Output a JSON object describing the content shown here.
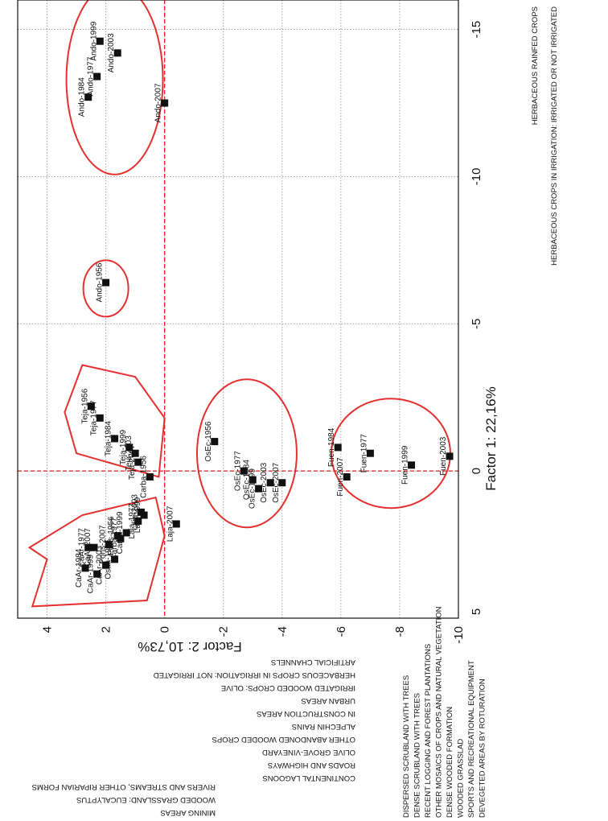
{
  "chart_data": {
    "type": "scatter",
    "xlabel": "Factor 1: 22,16%",
    "ylabel": "Factor 2: 10,73%",
    "xlim": [
      -16,
      5
    ],
    "ylim": [
      -10,
      5
    ],
    "xticks": [
      "-15",
      "-10",
      "-5",
      "0",
      "5"
    ],
    "yticks": [
      "4",
      "2",
      "0",
      "-2",
      "-4",
      "-6",
      "-8",
      "-10"
    ],
    "grid": true,
    "points": [
      {
        "label": "Ando-1999",
        "x": -14.6,
        "y": 2.2
      },
      {
        "label": "Ando-2003",
        "x": -14.2,
        "y": 1.6
      },
      {
        "label": "Ando-1977",
        "x": -13.4,
        "y": 2.3
      },
      {
        "label": "Ando-1984",
        "x": -12.7,
        "y": 2.6
      },
      {
        "label": "Ando-2007",
        "x": -12.5,
        "y": 0.0
      },
      {
        "label": "Ando-1956",
        "x": -6.4,
        "y": 2.0
      },
      {
        "label": "Teja-1956",
        "x": -2.2,
        "y": 2.5
      },
      {
        "label": "Teja-1977",
        "x": -1.8,
        "y": 2.2
      },
      {
        "label": "Teja-1984",
        "x": -1.1,
        "y": 1.7
      },
      {
        "label": "Teja-1999",
        "x": -0.8,
        "y": 1.2
      },
      {
        "label": "Teja-2003",
        "x": -0.6,
        "y": 1.0
      },
      {
        "label": "Teja-2007",
        "x": -0.3,
        "y": 0.9
      },
      {
        "label": "Carba-1956",
        "x": 0.2,
        "y": 0.5
      },
      {
        "label": "OsEc-1956",
        "x": -1.0,
        "y": -1.7
      },
      {
        "label": "OsEc-1977",
        "x": 0.0,
        "y": -2.7
      },
      {
        "label": "OsEc-1984",
        "x": 0.3,
        "y": -3.0
      },
      {
        "label": "OsEc-1999",
        "x": 0.6,
        "y": -3.2
      },
      {
        "label": "OsEc-2003",
        "x": 0.4,
        "y": -3.6
      },
      {
        "label": "OsEc-2007",
        "x": 0.4,
        "y": -4.0
      },
      {
        "label": "Fuen-1984",
        "x": -0.8,
        "y": -5.9
      },
      {
        "label": "Fuen-2007",
        "x": 0.2,
        "y": -6.2
      },
      {
        "label": "Fuen-1977",
        "x": -0.6,
        "y": -7.0
      },
      {
        "label": "Fuen-1999",
        "x": -0.2,
        "y": -8.4
      },
      {
        "label": "Fuen-2003",
        "x": -0.5,
        "y": -9.7
      },
      {
        "label": "CaAr-1977",
        "x": 2.6,
        "y": 2.6
      },
      {
        "label": "CaAr-1984",
        "x": 3.3,
        "y": 2.7
      },
      {
        "label": "CaAr-1999",
        "x": 3.5,
        "y": 2.3
      },
      {
        "label": "CaAr-2003",
        "x": 3.2,
        "y": 2.0
      },
      {
        "label": "CaAr-2007",
        "x": 2.6,
        "y": 2.4
      },
      {
        "label": "Osaa-1956",
        "x": 3.0,
        "y": 1.7
      },
      {
        "label": "Pons-1956",
        "x": 2.2,
        "y": 1.6
      },
      {
        "label": "Pons-2007",
        "x": 2.5,
        "y": 1.9
      },
      {
        "label": "Carba-1977",
        "x": 2.3,
        "y": 1.5
      },
      {
        "label": "Carba-1999",
        "x": 2.1,
        "y": 1.3
      },
      {
        "label": "Laja-1977",
        "x": 1.7,
        "y": 0.9
      },
      {
        "label": "Laja-1999",
        "x": 1.5,
        "y": 0.7
      },
      {
        "label": "Laja-2003",
        "x": 1.4,
        "y": 0.8
      },
      {
        "label": "Laja-2007",
        "x": 1.8,
        "y": -0.4
      }
    ],
    "annotations_right": [
      "HERBACEOUS RAINFED CROPS",
      "HERBACEOUS CROPS IN IRRIGATION: IRRIGATED OR NOT IRRIGATED"
    ],
    "annotations_left_inverted": [
      "ARTIFICIAL CHANNELS",
      "HERBACEOUS CROPS IN IRRIGATION: NOT IRRIGATED",
      "IRRIGATED WOODED CROPS: OLIVE",
      "URBAN AREAS",
      "IN CONSTRUCTION AREAS",
      "ALPECHIN RAINS",
      "OTHER ABANDONED WOODED CROPS",
      "OLIVE GROVE-VINEYARD",
      "ROADS AND HIGHWAYS",
      "CONTINENTAL LAGOONS"
    ],
    "annotations_left_inverted_2": [
      "RIVERS AND STREAMS, OTHER RIPARIAN FORMS",
      "WOODED GRASSLAND: EUCALYPTUS",
      "MINING AREAS"
    ],
    "annotations_bottom": [
      "DISPERSED SCRUBLAND WITH TREES",
      "DENSE SCRUBLAND WITH TREES",
      "RECENT LOGGING AND FOREST PLANTATIONS",
      "OTHER MOSAICS OF CROPS AND NATURAL VEGETATION",
      "DENSE WOODED FORMATION",
      "WOODED GRASSLAD",
      "SPORTS AND RECREATIONAL EQUIPMENT",
      "DEVEGETED AREAS BY ROTURATION"
    ]
  }
}
